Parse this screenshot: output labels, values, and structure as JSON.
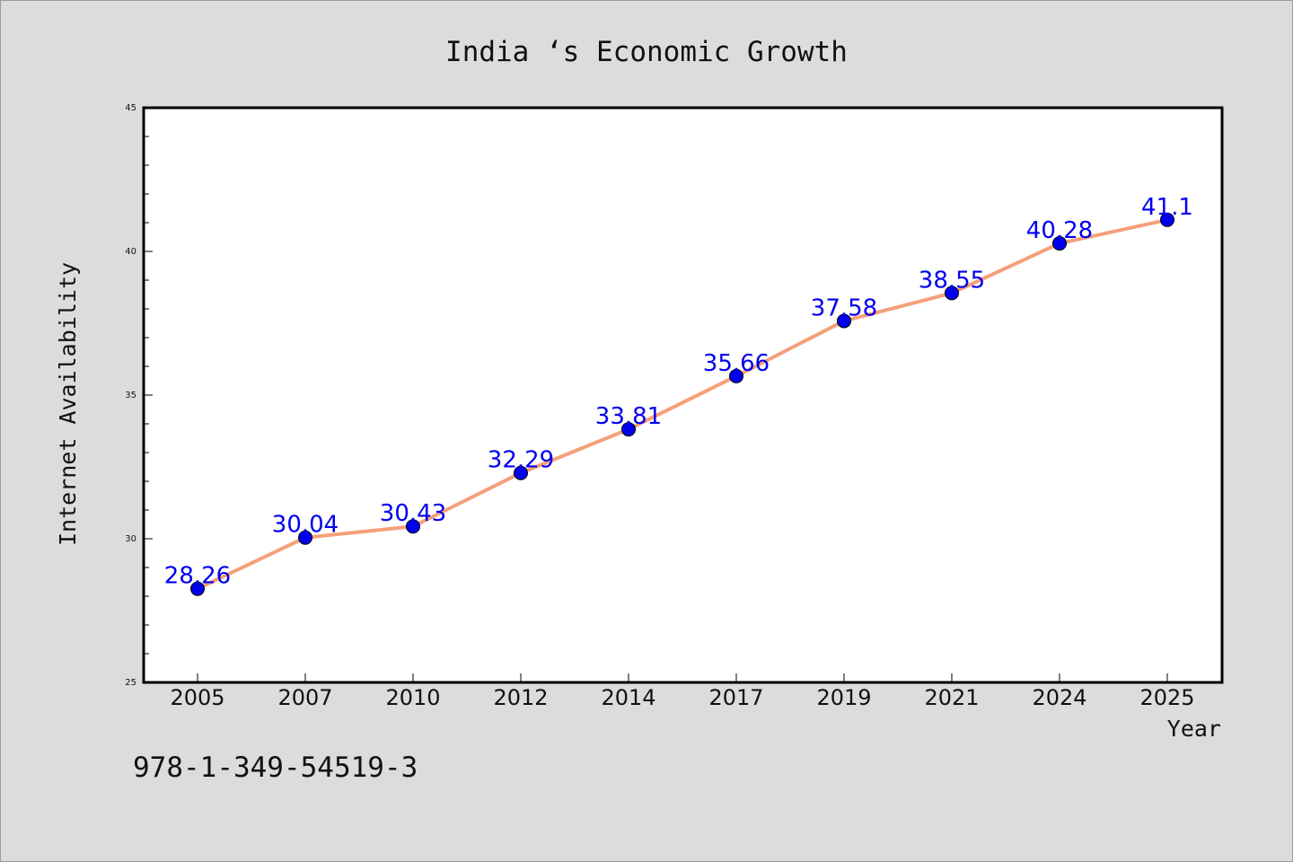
{
  "chart_data": {
    "type": "line",
    "title": "India ‘s Economic Growth",
    "xlabel": "Year",
    "ylabel": "Internet Availability",
    "categories": [
      "2005",
      "2007",
      "2010",
      "2012",
      "2014",
      "2017",
      "2019",
      "2021",
      "2024",
      "2025"
    ],
    "series": [
      {
        "values": [
          28.26,
          30.04,
          30.43,
          32.29,
          33.81,
          35.66,
          37.58,
          38.55,
          40.28,
          41.1
        ],
        "labels": [
          "28.26",
          "30.04",
          "30.43",
          "32.29",
          "33.81",
          "35.66",
          "37.58",
          "38.55",
          "40.28",
          "41.1"
        ],
        "line_color": "#f4a07a",
        "marker_color": "#0000ee"
      }
    ],
    "ylim": [
      25,
      45
    ],
    "y_ticks": [
      "25",
      "30",
      "35",
      "40",
      "45"
    ],
    "grid": false,
    "legend": "none"
  },
  "footnote": "978-1-349-54519-3",
  "colors": {
    "background": "#dcdcdc",
    "plot_background": "#ffffff",
    "line": "#f4a07a",
    "marker": "#0000ee",
    "data_label": "#0000ee"
  }
}
